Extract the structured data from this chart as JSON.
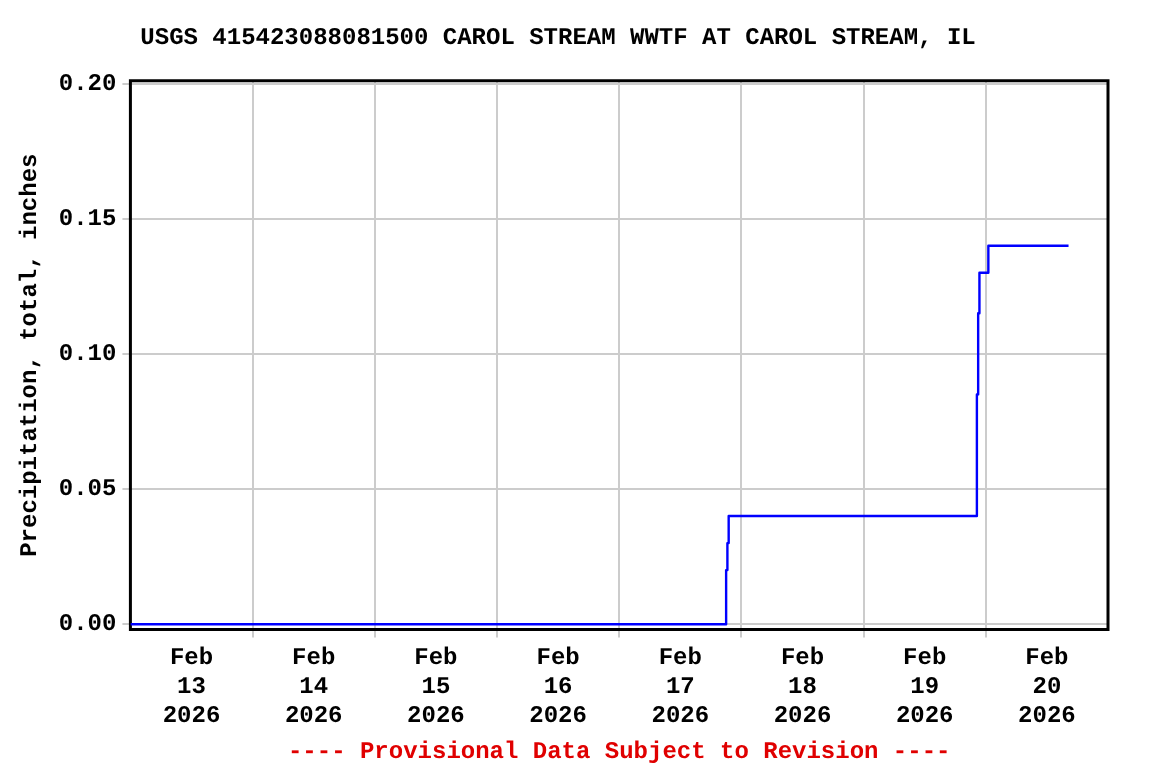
{
  "chart_data": {
    "type": "step",
    "title": "USGS 415423088081500 CAROL STREAM WWTF AT CAROL STREAM, IL",
    "ylabel": "Precipitation, total, inches",
    "annotations": [
      "---- Provisional Data Subject to Revision ----"
    ],
    "x": [
      "2026-02-13T00:00",
      "2026-02-17T21:00",
      "2026-02-17T21:15",
      "2026-02-17T21:30",
      "2026-02-19T22:15",
      "2026-02-19T22:30",
      "2026-02-19T22:45",
      "2026-02-20T00:30",
      "2026-02-20T16:15"
    ],
    "series": [
      {
        "color": "#0000ff",
        "values": [
          0,
          0.02,
          0.03,
          0.04,
          0.085,
          0.115,
          0.13,
          0.14,
          0.14
        ]
      }
    ],
    "xlim": [
      "2026-02-13T00:00",
      "2026-02-21T00:00"
    ],
    "xticks": [
      {
        "value": "2026-02-13T12:00",
        "label": "Feb\n13\n2026"
      },
      {
        "value": "2026-02-14T00:00",
        "label": null
      },
      {
        "value": "2026-02-14T12:00",
        "label": "Feb\n14\n2026"
      },
      {
        "value": "2026-02-15T00:00",
        "label": null
      },
      {
        "value": "2026-02-15T12:00",
        "label": "Feb\n15\n2026"
      },
      {
        "value": "2026-02-16T00:00",
        "label": null
      },
      {
        "value": "2026-02-16T12:00",
        "label": "Feb\n16\n2026"
      },
      {
        "value": "2026-02-17T00:00",
        "label": null
      },
      {
        "value": "2026-02-17T12:00",
        "label": "Feb\n17\n2026"
      },
      {
        "value": "2026-02-18T00:00",
        "label": null
      },
      {
        "value": "2026-02-18T12:00",
        "label": "Feb\n18\n2026"
      },
      {
        "value": "2026-02-19T00:00",
        "label": null
      },
      {
        "value": "2026-02-19T12:00",
        "label": "Feb\n19\n2026"
      },
      {
        "value": "2026-02-20T00:00",
        "label": null
      },
      {
        "value": "2026-02-20T12:00",
        "label": "Feb\n20\n2026"
      }
    ],
    "ylim": [
      -0.002,
      0.201
    ],
    "yticks": [
      {
        "value": 0,
        "label": "0.00"
      },
      {
        "value": 0.05,
        "label": "0.05"
      },
      {
        "value": 0.1,
        "label": "0.10"
      },
      {
        "value": 0.15,
        "label": "0.15"
      },
      {
        "value": 0.2,
        "label": "0.20"
      }
    ],
    "grid": true,
    "legend": false
  }
}
